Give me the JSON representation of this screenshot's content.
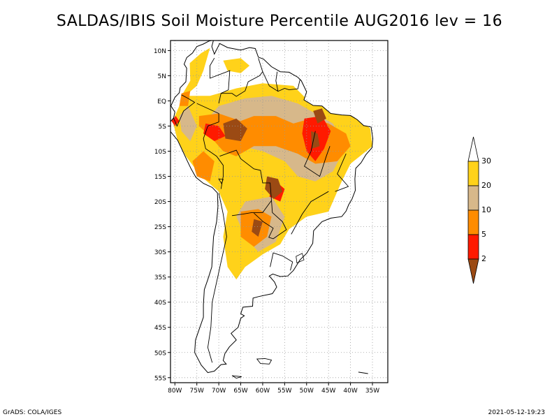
{
  "title": "SALDAS/IBIS Soil Moisture Percentile AUG2016 lev = 16",
  "map": {
    "region": "South America",
    "lat_labels": [
      "10N",
      "5N",
      "EQ",
      "5S",
      "10S",
      "15S",
      "20S",
      "25S",
      "30S",
      "35S",
      "40S",
      "45S",
      "50S",
      "55S"
    ],
    "lat_values": [
      10,
      5,
      0,
      -5,
      -10,
      -15,
      -20,
      -25,
      -30,
      -35,
      -40,
      -45,
      -50,
      -55
    ],
    "lon_labels": [
      "80W",
      "75W",
      "70W",
      "65W",
      "60W",
      "55W",
      "50W",
      "45W",
      "40W",
      "35W"
    ],
    "lon_values": [
      -80,
      -75,
      -70,
      -65,
      -60,
      -55,
      -50,
      -45,
      -40,
      -35
    ],
    "lon_range": [
      -81,
      -31.5
    ],
    "lat_range": [
      12,
      -56
    ]
  },
  "legend": {
    "labels": [
      "30",
      "20",
      "10",
      "5",
      "2"
    ],
    "colors": {
      "above30": "#ffffff",
      "p20_30": "#ffd21a",
      "p10_20": "#d7b88a",
      "p5_10": "#ff8c00",
      "p2_5": "#ff1a00",
      "below2": "#9b4a14"
    }
  },
  "footer": {
    "left": "GrADS: COLA/IGES",
    "right": "2021-05-12-19:23"
  }
}
